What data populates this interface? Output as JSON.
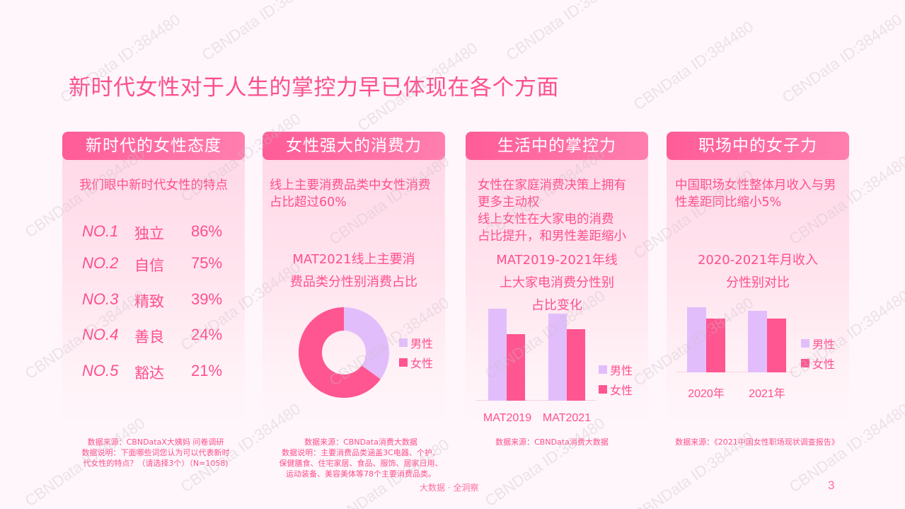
{
  "page": {
    "title": "新时代女性对于人生的掌控力早已体现在各个方面",
    "footer_brand": "大数据 · 全洞察",
    "page_number": "3",
    "watermark": "CBNData ID:384480"
  },
  "colors": {
    "accent": "#FF4F8E",
    "header_start": "#FF5C97",
    "header_end": "#FF7FAF",
    "male": "#E2BDFB",
    "female": "#FF5590",
    "panel_top": "#FFD8E7",
    "background": "#FEF6FB"
  },
  "legend": {
    "male": "男性",
    "female": "女性"
  },
  "panels": [
    {
      "header": "新时代的女性态度",
      "desc": "我们眼中新时代女性的特点",
      "ranks": [
        {
          "no": "NO.1",
          "word": "独立",
          "pct": "86%"
        },
        {
          "no": "NO.2",
          "word": "自信",
          "pct": "75%"
        },
        {
          "no": "NO.3",
          "word": "精致",
          "pct": "39%"
        },
        {
          "no": "NO.4",
          "word": "善良",
          "pct": "24%"
        },
        {
          "no": "NO.5",
          "word": "豁达",
          "pct": "21%"
        }
      ],
      "source": [
        "数据来源：CBNDataX大姨妈 问卷调研",
        "数据说明：下面哪些词您认为可以代表新时",
        "代女性的特点？（请选择3个）（N=1058)"
      ]
    },
    {
      "header": "女性强大的消费力",
      "desc": "线上主要消费品类中女性消费占比超过60%",
      "chart_title": [
        "MAT2021线上主要消",
        "费品类分性别消费占比"
      ],
      "source": [
        "数据来源：CBNData消费大数据",
        "数据说明：主要消费品类涵盖3C电器、个护、",
        "保健膳食、住宅家居、食品、服饰、居家日用、",
        "运动装备、美容美体等78个主要消费品类。"
      ]
    },
    {
      "header": "生活中的掌控力",
      "desc": [
        "女性在家庭消费决策上拥有",
        "更多主动权",
        "线上女性在大家电的消费",
        "占比提升，和男性差距缩小"
      ],
      "chart_title": [
        "MAT2019-2021年线",
        "上大家电消费分性别",
        "占比变化"
      ],
      "source": [
        "数据来源：CBNData消费大数据"
      ]
    },
    {
      "header": "职场中的女子力",
      "desc": "中国职场女性整体月收入与男性差距同比缩小5%",
      "chart_title": [
        "2020-2021年月收入",
        "分性别对比"
      ],
      "source": [
        "数据来源：《2021中国女性职场现状调查报告》"
      ]
    }
  ],
  "chart_data": [
    {
      "type": "table",
      "title": "我们眼中新时代女性的特点",
      "categories": [
        "独立",
        "自信",
        "精致",
        "善良",
        "豁达"
      ],
      "ranks": [
        "NO.1",
        "NO.2",
        "NO.3",
        "NO.4",
        "NO.5"
      ],
      "values": [
        86,
        75,
        39,
        24,
        21
      ],
      "unit": "%"
    },
    {
      "type": "pie",
      "donut": true,
      "title": "MAT2021线上主要消费品类分性别消费占比",
      "categories": [
        "男性",
        "女性"
      ],
      "values": [
        35,
        65
      ],
      "legend_position": "right"
    },
    {
      "type": "bar",
      "title": "MAT2019-2021年线上大家电消费分性别占比变化",
      "categories": [
        "MAT2019",
        "MAT2021"
      ],
      "series": [
        {
          "name": "男性",
          "values": [
            58,
            55
          ]
        },
        {
          "name": "女性",
          "values": [
            42,
            45
          ]
        }
      ],
      "xlabel": "",
      "ylabel": "",
      "grid": false,
      "legend_position": "right"
    },
    {
      "type": "bar",
      "title": "2020-2021年月收入分性别对比",
      "categories": [
        "2020年",
        "2021年"
      ],
      "series": [
        {
          "name": "男性",
          "values": [
            100,
            95
          ]
        },
        {
          "name": "女性",
          "values": [
            83,
            83
          ]
        }
      ],
      "xlabel": "",
      "ylabel": "",
      "grid": false,
      "legend_position": "right"
    }
  ]
}
